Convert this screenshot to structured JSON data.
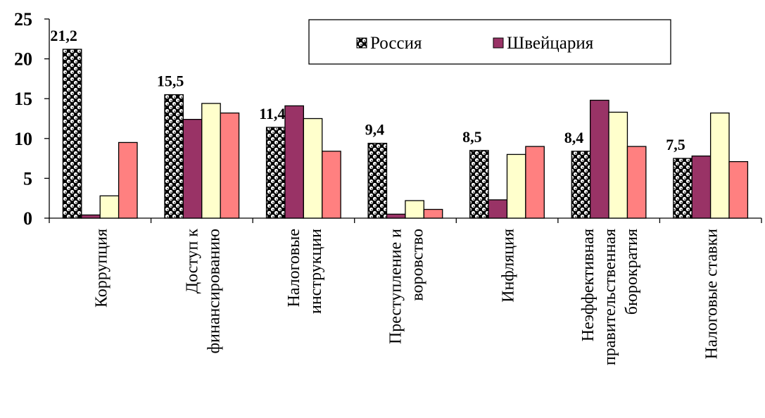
{
  "chart_data": {
    "type": "bar",
    "categories": [
      [
        "Коррупция"
      ],
      [
        "Доступ к",
        "финансированию"
      ],
      [
        "Налоговые",
        "инструкции"
      ],
      [
        "Преступление и",
        "воровство"
      ],
      [
        "Инфляция"
      ],
      [
        "Неэффективная",
        "правительственная",
        "бюрократия"
      ],
      [
        "Налоговые ставки"
      ]
    ],
    "series": [
      {
        "name": "Россия",
        "values": [
          21.2,
          15.5,
          11.4,
          9.4,
          8.5,
          8.4,
          7.5
        ],
        "color": "#000000",
        "pattern": "checker-dots"
      },
      {
        "name": "Швейцария",
        "values": [
          0.4,
          12.4,
          14.1,
          0.5,
          2.3,
          14.8,
          7.8
        ],
        "color": "#993366"
      },
      {
        "name": "",
        "values": [
          2.8,
          14.4,
          12.5,
          2.2,
          8.0,
          13.3,
          13.2
        ],
        "color": "#ffffcc"
      },
      {
        "name": "",
        "values": [
          9.5,
          13.2,
          8.4,
          1.1,
          9.0,
          9.0,
          7.1
        ],
        "color": "#ff8080"
      }
    ],
    "data_labels": [
      "21,2",
      "15,5",
      "11,4",
      "9,4",
      "8,5",
      "8,4",
      "7,5"
    ],
    "yticks": [
      "0",
      "5",
      "10",
      "15",
      "20",
      "25"
    ],
    "ylim": [
      0,
      25
    ],
    "grid": false,
    "legend_position": "top-right"
  }
}
